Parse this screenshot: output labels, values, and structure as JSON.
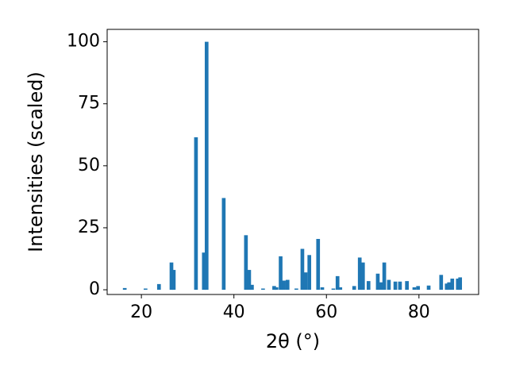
{
  "chart_data": {
    "type": "bar",
    "xlabel": "2θ (°)",
    "ylabel": "Intensities (scaled)",
    "x": [
      16.4,
      20.9,
      23.8,
      26.5,
      27.0,
      31.8,
      33.5,
      34.1,
      37.8,
      42.6,
      43.3,
      43.9,
      46.3,
      48.7,
      49.2,
      50.1,
      50.8,
      51.6,
      53.5,
      54.8,
      55.5,
      56.3,
      58.2,
      59.1,
      61.5,
      62.4,
      63.0,
      66.0,
      67.2,
      67.9,
      69.1,
      71.1,
      71.8,
      72.5,
      73.5,
      74.9,
      75.9,
      77.4,
      79.0,
      79.8,
      82.1,
      84.8,
      86.0,
      86.5,
      87.2,
      88.4,
      88.9
    ],
    "values": [
      0.7,
      0.5,
      2.3,
      11,
      8,
      61.5,
      15,
      100,
      37,
      22,
      8,
      2,
      0.5,
      1.5,
      1,
      13.5,
      3.7,
      4,
      0.5,
      16.5,
      7,
      14,
      20.5,
      1,
      0.5,
      5.5,
      1,
      1.5,
      13,
      11,
      3.5,
      6.5,
      3,
      11,
      4,
      3.3,
      3.3,
      3.5,
      1,
      1.5,
      1.7,
      6,
      2.5,
      3,
      4.5,
      4.5,
      5
    ],
    "color": "#1f77b4",
    "xlim": [
      12.6,
      92.9
    ],
    "xticks": [
      20,
      40,
      60,
      80
    ],
    "ylim": [
      -1.9,
      105
    ],
    "yticks": [
      0,
      25,
      50,
      75,
      100
    ]
  }
}
